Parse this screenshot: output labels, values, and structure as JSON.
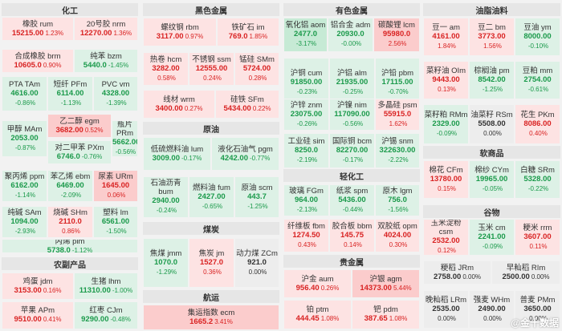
{
  "sections": {
    "chem": "化工",
    "ferrous": "黑色金属",
    "nonferrous": "有色金属",
    "oils": "油脂油料",
    "crude": "原油",
    "coal": "煤炭",
    "shipping": "航运",
    "agri": "农副产品",
    "light": "轻化工",
    "precious": "贵金属",
    "soft": "软商品",
    "grains": "谷物"
  },
  "watermark": "@金十数据",
  "cells": [
    {
      "n": "橡胶 rum",
      "p": "15215.00",
      "c": "1.23%"
    },
    {
      "n": "20号胶 nrm",
      "p": "12270.00",
      "c": "1.36%"
    },
    {
      "n": "合成橡胶 brm",
      "p": "10605.0",
      "c": "0.90%"
    },
    {
      "n": "纯苯 bzm",
      "p": "5440.0",
      "c": "-1.45%"
    },
    {
      "n": "PTA TAm",
      "p": "4616.00",
      "c": "-0.86%"
    },
    {
      "n": "短纤 PFm",
      "p": "6114.00",
      "c": "-1.13%"
    },
    {
      "n": "PVC vm",
      "p": "4328.00",
      "c": "-1.39%"
    },
    {
      "n": "乙二醇 egm",
      "p": "3682.00",
      "c": "0.52%"
    },
    {
      "n": "甲醇 MAm",
      "p": "2053.00",
      "c": "-0.87%"
    },
    {
      "n": "对二甲苯 PXm",
      "p": "6746.0",
      "c": "-0.76%"
    },
    {
      "n": "瓶片 PRm",
      "p": "5662.00",
      "c": "-0.56%"
    },
    {
      "n": "聚丙烯 ppm",
      "p": "6162.00",
      "c": "-1.14%"
    },
    {
      "n": "苯乙烯 ebm",
      "p": "6469.00",
      "c": "-2.09%"
    },
    {
      "n": "尿素 URm",
      "p": "1645.00",
      "c": "0.06%"
    },
    {
      "n": "纯碱 SAm",
      "p": "1094.00",
      "c": "-2.93%"
    },
    {
      "n": "烧碱 SHm",
      "p": "2110.0",
      "c": "0.86%"
    },
    {
      "n": "塑料 lm",
      "p": "6561.00",
      "c": "-1.50%"
    },
    {
      "n": "丙烯 plm",
      "p": "5738.0",
      "c": "-1.12%"
    },
    {
      "n": "鸡蛋 jdm",
      "p": "3153.00",
      "c": "0.16%"
    },
    {
      "n": "生猪 lhm",
      "p": "11310.00",
      "c": "-1.00%"
    },
    {
      "n": "苹果 APm",
      "p": "9510.00",
      "c": "0.41%"
    },
    {
      "n": "红枣 CJm",
      "p": "9290.00",
      "c": "-0.48%"
    },
    {
      "n": "螺纹钢 rbm",
      "p": "3117.00",
      "c": "0.97%"
    },
    {
      "n": "铁矿石 im",
      "p": "769.0",
      "c": "1.85%"
    },
    {
      "n": "热卷 hcm",
      "p": "3282.00",
      "c": "0.58%"
    },
    {
      "n": "不锈钢 ssm",
      "p": "12555.00",
      "c": "0.24%"
    },
    {
      "n": "锰硅 SMm",
      "p": "5724.00",
      "c": "0.28%"
    },
    {
      "n": "线材 wrm",
      "p": "3400.00",
      "c": "0.27%"
    },
    {
      "n": "硅铁 SFm",
      "p": "5434.00",
      "c": "0.22%"
    },
    {
      "n": "低硫燃料油 lum",
      "p": "3009.00",
      "c": "-0.17%"
    },
    {
      "n": "液化石油气 pgm",
      "p": "4242.00",
      "c": "-0.77%"
    },
    {
      "n": "石油沥青 bum",
      "p": "2940.00",
      "c": "-0.24%"
    },
    {
      "n": "燃料油 fum",
      "p": "2427.00",
      "c": "-0.65%"
    },
    {
      "n": "原油 scm",
      "p": "443.7",
      "c": "-1.25%"
    },
    {
      "n": "焦煤 jmm",
      "p": "1070.0",
      "c": "-1.29%"
    },
    {
      "n": "焦炭 jm",
      "p": "1527.0",
      "c": "0.36%"
    },
    {
      "n": "动力煤 ZCm",
      "p": "921.0",
      "c": "0.00%"
    },
    {
      "n": "集运指数 ecm",
      "p": "1665.2",
      "c": "3.41%"
    },
    {
      "n": "氧化铝 aom",
      "p": "2477.0",
      "c": "-3.17%"
    },
    {
      "n": "铝合金 adm",
      "p": "20930.0",
      "c": "-0.00%"
    },
    {
      "n": "碳酸锂 lcm",
      "p": "95980.0",
      "c": "2.56%"
    },
    {
      "n": "沪铜 cum",
      "p": "91850.00",
      "c": "-0.23%"
    },
    {
      "n": "沪铝 alm",
      "p": "21935.00",
      "c": "-0.25%"
    },
    {
      "n": "沪铅 pbm",
      "p": "17115.00",
      "c": "-0.70%"
    },
    {
      "n": "沪锌 znm",
      "p": "23075.00",
      "c": "-0.26%"
    },
    {
      "n": "沪镍 nim",
      "p": "117090.00",
      "c": "-0.56%"
    },
    {
      "n": "多晶硅 psm",
      "p": "55915.0",
      "c": "1.62%"
    },
    {
      "n": "工业硅 sim",
      "p": "8250.0",
      "c": "-2.19%"
    },
    {
      "n": "国际铜 bcm",
      "p": "82270.00",
      "c": "-0.17%"
    },
    {
      "n": "沪锡 snm",
      "p": "322630.00",
      "c": "-2.22%"
    },
    {
      "n": "玻璃 FGm",
      "p": "964.00",
      "c": "-2.13%"
    },
    {
      "n": "纸浆 spm",
      "p": "5436.00",
      "c": "-0.44%"
    },
    {
      "n": "原木 lgm",
      "p": "756.0",
      "c": "-1.56%"
    },
    {
      "n": "纤维板 fbm",
      "p": "1274.50",
      "c": "0.43%"
    },
    {
      "n": "胶合板 bbm",
      "p": "145.75",
      "c": "0.14%"
    },
    {
      "n": "双胶纸 opm",
      "p": "4024.00",
      "c": "0.30%"
    },
    {
      "n": "沪金 aum",
      "p": "956.40",
      "c": "0.26%"
    },
    {
      "n": "沪银 agm",
      "p": "14373.00",
      "c": "5.44%"
    },
    {
      "n": "铂 ptm",
      "p": "444.45",
      "c": "1.08%"
    },
    {
      "n": "钯 pdm",
      "p": "387.65",
      "c": "1.08%"
    },
    {
      "n": "豆一 am",
      "p": "4161.00",
      "c": "1.84%"
    },
    {
      "n": "豆二 bm",
      "p": "3773.00",
      "c": "1.56%"
    },
    {
      "n": "豆油 ym",
      "p": "8000.00",
      "c": "-0.10%"
    },
    {
      "n": "菜籽油 OIm",
      "p": "9443.00",
      "c": "0.13%"
    },
    {
      "n": "棕榈油 pm",
      "p": "8542.00",
      "c": "-1.25%"
    },
    {
      "n": "豆粕 mm",
      "p": "2754.00",
      "c": "-0.61%"
    },
    {
      "n": "菜籽粕 RMm",
      "p": "2329.00",
      "c": "-0.09%"
    },
    {
      "n": "油菜籽 RSm",
      "p": "5508.00",
      "c": "0.00%"
    },
    {
      "n": "花生 PKm",
      "p": "8086.00",
      "c": "0.40%"
    },
    {
      "n": "棉花 CFm",
      "p": "13780.00",
      "c": "0.15%"
    },
    {
      "n": "棉纱 CYm",
      "p": "19965.00",
      "c": "-0.05%"
    },
    {
      "n": "白糖 SRm",
      "p": "5328.00",
      "c": "-0.22%"
    },
    {
      "n": "玉米淀粉 csm",
      "p": "2532.00",
      "c": "0.12%"
    },
    {
      "n": "玉米 cm",
      "p": "2241.00",
      "c": "-0.09%"
    },
    {
      "n": "粳米 rrm",
      "p": "3607.00",
      "c": "0.11%"
    },
    {
      "n": "粳稻 JRm",
      "p": "2758.00",
      "c": "0.00%"
    },
    {
      "n": "早籼稻 RIm",
      "p": "2500.00",
      "c": "0.00%"
    },
    {
      "n": "晚籼稻 LRm",
      "p": "2535.00",
      "c": "0.00%"
    },
    {
      "n": "强麦 WHm",
      "p": "2490.00",
      "c": "0.00%"
    },
    {
      "n": "普麦 PMm",
      "p": "3650.00",
      "c": "0.00%"
    }
  ]
}
